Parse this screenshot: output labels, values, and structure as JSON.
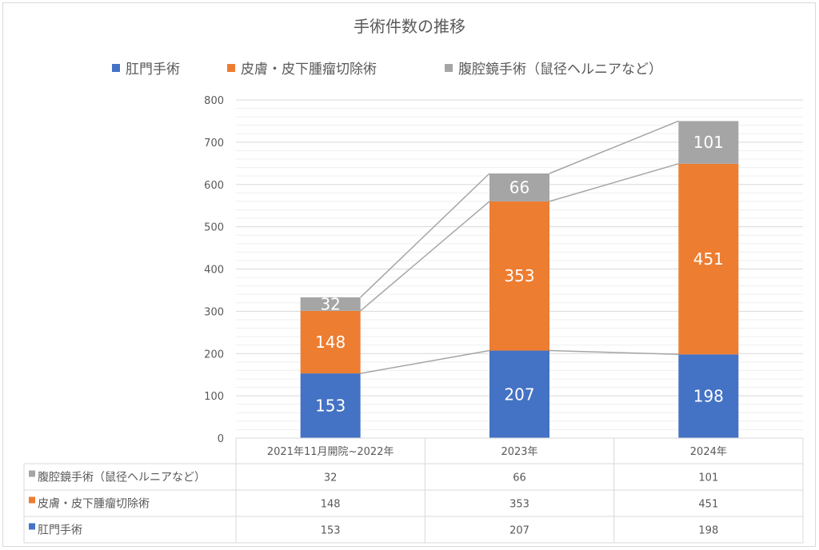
{
  "chart_data": {
    "type": "bar",
    "stacked": true,
    "title": "手術件数の推移",
    "categories": [
      "2021年11月開院~2022年",
      "2023年",
      "2024年"
    ],
    "series": [
      {
        "name": "肛門手術",
        "values": [
          153,
          207,
          198
        ],
        "color": "#4472C4"
      },
      {
        "name": "皮膚・皮下腫瘤切除術",
        "values": [
          148,
          353,
          451
        ],
        "color": "#ED7D31"
      },
      {
        "name": "腹腔鏡手術（鼠径ヘルニアなど）",
        "values": [
          32,
          66,
          101
        ],
        "color": "#A5A5A5"
      }
    ],
    "ylim": [
      0,
      800
    ],
    "yticks": [
      0,
      100,
      200,
      300,
      400,
      500,
      600,
      700,
      800
    ],
    "minor_tick_step": 20,
    "grid": true,
    "legend_position": "top",
    "data_table": true,
    "series_lines": true
  }
}
